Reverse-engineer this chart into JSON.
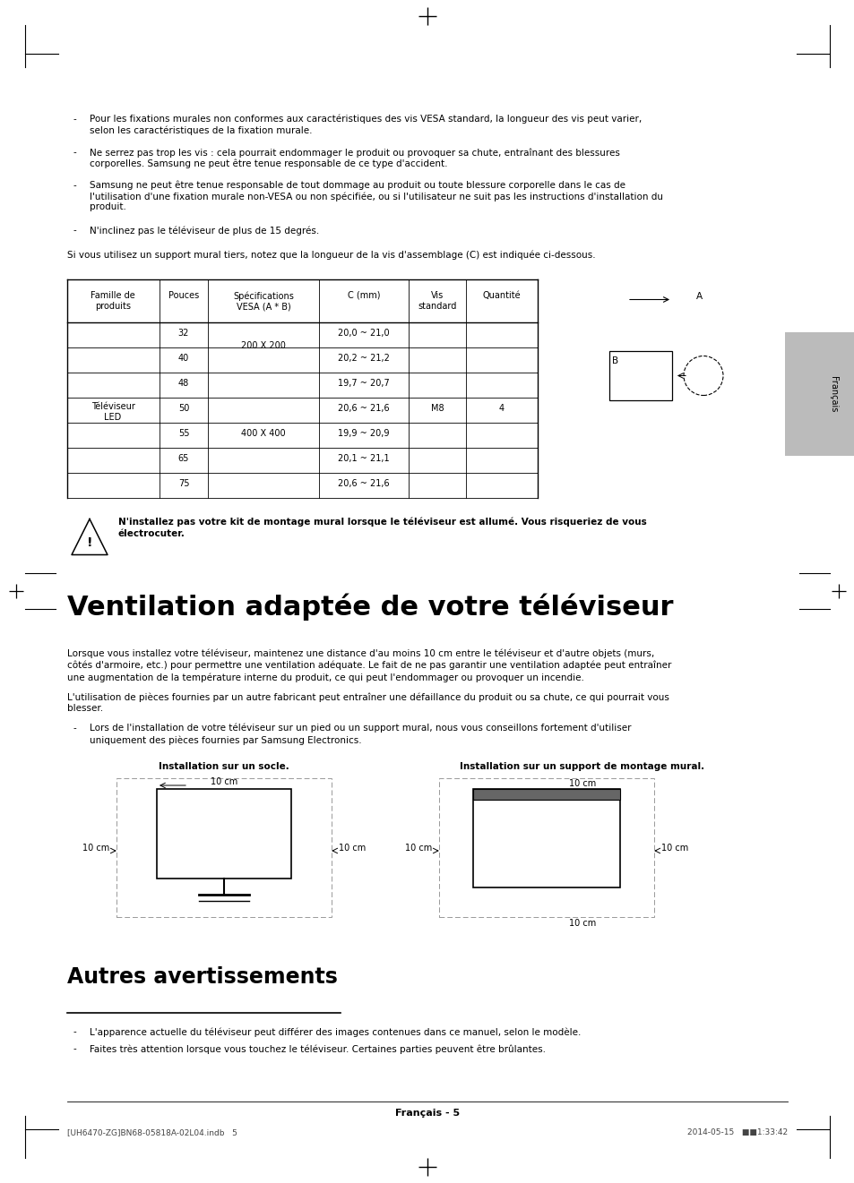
{
  "bg_color": "#ffffff",
  "pw": 9.54,
  "ph": 13.21,
  "bullets_top": [
    "Pour les fixations murales non conformes aux caractéristiques des vis VESA standard, la longueur des vis peut varier,\nselon les caractéristiques de la fixation murale.",
    "Ne serrez pas trop les vis : cela pourrait endommager le produit ou provoquer sa chute, entraînant des blessures\ncorporelles. Samsung ne peut être tenue responsable de ce type d'accident.",
    "Samsung ne peut être tenue responsable de tout dommage au produit ou toute blessure corporelle dans le cas de\nl'utilisation d'une fixation murale non-VESA ou non spécifiée, ou si l'utilisateur ne suit pas les instructions d'installation du\nproduit.",
    "N'inclinez pas le téléviseur de plus de 15 degrés."
  ],
  "intro_text": "Si vous utilisez un support mural tiers, notez que la longueur de la vis d'assemblage (C) est indiquée ci-dessous.",
  "table_headers": [
    "Famille de\nproduits",
    "Pouces",
    "Spécifications\nVESA (A * B)",
    "C (mm)",
    "Vis\nstandard",
    "Quantité"
  ],
  "table_row_label": "Téléviseur\nLED",
  "cmm_vals": [
    "20,0 ~ 21,0",
    "20,2 ~ 21,2",
    "19,7 ~ 20,7",
    "20,6 ~ 21,6",
    "19,9 ~ 20,9",
    "20,1 ~ 21,1",
    "20,6 ~ 21,6"
  ],
  "pouces_vals": [
    "32",
    "40",
    "48",
    "50",
    "55",
    "65",
    "75"
  ],
  "warning_text_line1": "N'installez pas votre kit de montage mural lorsque le téléviseur est allumé. Vous risqueriez de vous",
  "warning_text_line2": "électrocuter.",
  "section_title": "Ventilation adaptée de votre téléviseur",
  "para1_lines": [
    "Lorsque vous installez votre téléviseur, maintenez une distance d'au moins 10 cm entre le téléviseur et d'autre objets (murs,",
    "côtés d'armoire, etc.) pour permettre une ventilation adéquate. Le fait de ne pas garantir une ventilation adaptée peut entraîner",
    "une augmentation de la température interne du produit, ce qui peut l'endommager ou provoquer un incendie."
  ],
  "para2_lines": [
    "L'utilisation de pièces fournies par un autre fabricant peut entraîner une défaillance du produit ou sa chute, ce qui pourrait vous",
    "blesser."
  ],
  "bullet_install_lines": [
    "Lors de l'installation de votre téléviseur sur un pied ou un support mural, nous vous conseillons fortement d'utiliser",
    "uniquement des pièces fournies par Samsung Electronics."
  ],
  "label_socle": "Installation sur un socle.",
  "label_mural": "Installation sur un support de montage mural.",
  "section2_title": "Autres avertissements",
  "bullets_bottom": [
    "L'apparence actuelle du téléviseur peut différer des images contenues dans ce manuel, selon le modèle.",
    "Faites très attention lorsque vous touchez le téléviseur. Certaines parties peuvent être brûlantes."
  ],
  "footer_center": "Français - 5",
  "footer_left": "[UH6470-ZG]BN68-05818A-02L04.indb   5",
  "footer_right": "2014-05-15   ■■1:33:42",
  "sidebar_text": "Français"
}
